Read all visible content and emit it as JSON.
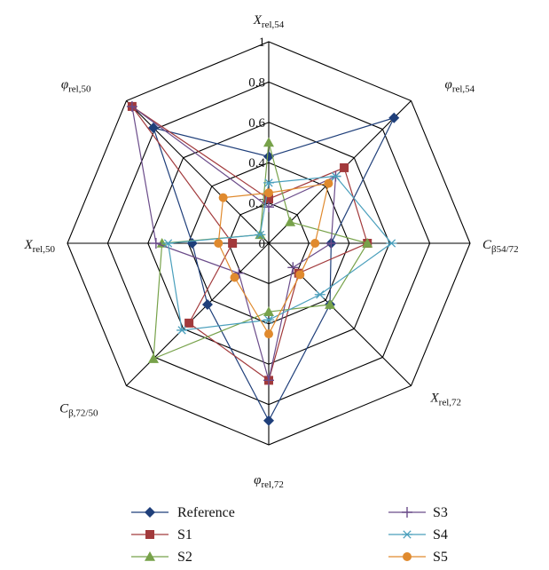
{
  "chart_data": {
    "type": "radar",
    "title": "",
    "axes": [
      {
        "id": "X_rel_54",
        "main": "X",
        "sub": "rel,54"
      },
      {
        "id": "phi_rel_54",
        "main": "φ",
        "sub": "rel,54"
      },
      {
        "id": "C_b54_72",
        "main": "C",
        "sub": "β54/72"
      },
      {
        "id": "X_rel_72",
        "main": "X",
        "sub": "rel,72"
      },
      {
        "id": "phi_rel_72",
        "main": "φ",
        "sub": "rel,72"
      },
      {
        "id": "C_b72_50",
        "main": "C",
        "sub": "β,72/50"
      },
      {
        "id": "X_rel_50",
        "main": "X",
        "sub": "rel,50"
      },
      {
        "id": "phi_rel_50",
        "main": "φ",
        "sub": "rel,50"
      }
    ],
    "rlim": [
      0,
      1
    ],
    "ticks": [
      0,
      0.2,
      0.4,
      0.6,
      0.8,
      1
    ],
    "tick_labels": [
      "0",
      "0.2",
      "0.4",
      "0.6",
      "0.8",
      "1"
    ],
    "grid": true,
    "legend_position": "bottom",
    "series": [
      {
        "name": "Reference",
        "color": "#1f3f7a",
        "marker": "diamond",
        "values": [
          0.43,
          0.88,
          0.31,
          0.43,
          0.88,
          0.43,
          0.38,
          0.81
        ]
      },
      {
        "name": "S1",
        "color": "#a23a3c",
        "marker": "square",
        "values": [
          0.22,
          0.53,
          0.49,
          0.21,
          0.68,
          0.56,
          0.18,
          0.96
        ]
      },
      {
        "name": "S2",
        "color": "#77a24a",
        "marker": "triangle",
        "values": [
          0.5,
          0.15,
          0.49,
          0.43,
          0.34,
          0.81,
          0.53,
          0.06
        ]
      },
      {
        "name": "S3",
        "color": "#6b4c8a",
        "marker": "plus",
        "values": [
          0.18,
          0.47,
          0.31,
          0.17,
          0.68,
          0.21,
          0.56,
          0.96
        ]
      },
      {
        "name": "S4",
        "color": "#4a9fbc",
        "marker": "asterisk",
        "values": [
          0.3,
          0.47,
          0.61,
          0.36,
          0.38,
          0.61,
          0.5,
          0.06
        ]
      },
      {
        "name": "S5",
        "color": "#e08a2e",
        "marker": "circle",
        "values": [
          0.25,
          0.42,
          0.23,
          0.22,
          0.45,
          0.24,
          0.25,
          0.32
        ]
      }
    ]
  }
}
